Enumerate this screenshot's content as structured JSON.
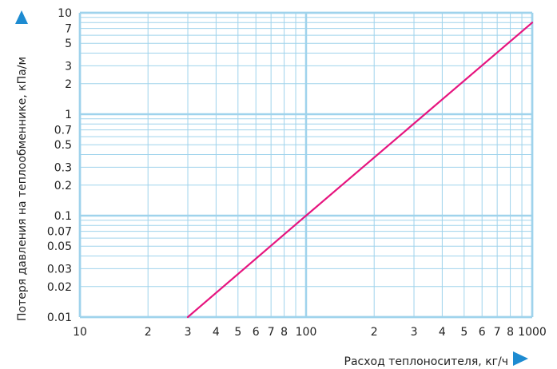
{
  "chart_data": {
    "type": "line",
    "xlabel": "Расход теплоносителя, кг/ч",
    "ylabel": "Потеря давления на теплообменнике, кПа/м",
    "x_scale": "log",
    "y_scale": "log",
    "xlim": [
      10,
      1000
    ],
    "ylim": [
      0.01,
      10
    ],
    "x_tick_labels": [
      {
        "value": 10,
        "label": "10"
      },
      {
        "value": 20,
        "label": "2"
      },
      {
        "value": 30,
        "label": "3"
      },
      {
        "value": 40,
        "label": "4"
      },
      {
        "value": 50,
        "label": "5"
      },
      {
        "value": 60,
        "label": "6"
      },
      {
        "value": 70,
        "label": "7"
      },
      {
        "value": 80,
        "label": "8"
      },
      {
        "value": 100,
        "label": "100"
      },
      {
        "value": 200,
        "label": "2"
      },
      {
        "value": 300,
        "label": "3"
      },
      {
        "value": 400,
        "label": "4"
      },
      {
        "value": 500,
        "label": "5"
      },
      {
        "value": 600,
        "label": "6"
      },
      {
        "value": 700,
        "label": "7"
      },
      {
        "value": 800,
        "label": "8"
      },
      {
        "value": 1000,
        "label": "1000"
      }
    ],
    "y_tick_labels": [
      {
        "value": 0.01,
        "label": "0.01"
      },
      {
        "value": 0.02,
        "label": "0.02"
      },
      {
        "value": 0.03,
        "label": "0.03"
      },
      {
        "value": 0.05,
        "label": "0.05"
      },
      {
        "value": 0.07,
        "label": "0.07"
      },
      {
        "value": 0.1,
        "label": "0.1"
      },
      {
        "value": 0.2,
        "label": "0.2"
      },
      {
        "value": 0.3,
        "label": "0.3"
      },
      {
        "value": 0.5,
        "label": "0.5"
      },
      {
        "value": 0.7,
        "label": "0.7"
      },
      {
        "value": 1,
        "label": "1"
      },
      {
        "value": 2,
        "label": "2"
      },
      {
        "value": 3,
        "label": "3"
      },
      {
        "value": 5,
        "label": "5"
      },
      {
        "value": 7,
        "label": "7"
      },
      {
        "value": 10,
        "label": "10"
      }
    ],
    "x_minor_gridlines": [
      10,
      20,
      30,
      40,
      50,
      60,
      70,
      80,
      90,
      100,
      200,
      300,
      400,
      500,
      600,
      700,
      800,
      900,
      1000
    ],
    "y_minor_gridlines": [
      0.01,
      0.02,
      0.03,
      0.04,
      0.05,
      0.06,
      0.07,
      0.08,
      0.09,
      0.1,
      0.2,
      0.3,
      0.4,
      0.5,
      0.6,
      0.7,
      0.8,
      0.9,
      1,
      2,
      3,
      4,
      5,
      6,
      7,
      8,
      9,
      10
    ],
    "x_major_gridlines": [
      10,
      100,
      1000
    ],
    "y_major_gridlines": [
      0.01,
      0.1,
      1,
      10
    ],
    "grid": true,
    "series": [
      {
        "x": [
          30,
          100,
          1000
        ],
        "y": [
          0.01,
          0.1,
          8
        ]
      }
    ],
    "colors": {
      "grid": "#9fd3ec",
      "line": "#e6157f",
      "arrow": "#1d8bd1",
      "text": "#222222"
    }
  }
}
